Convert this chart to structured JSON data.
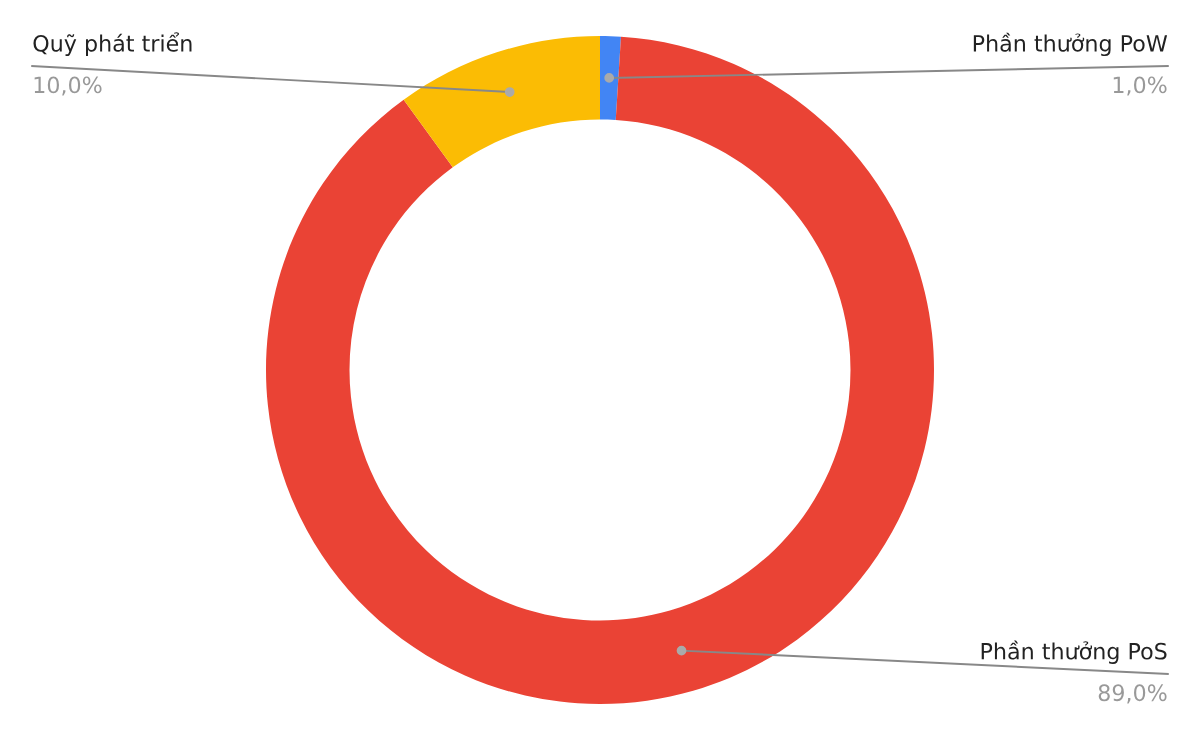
{
  "chart_data": {
    "type": "donut",
    "categories": [
      "Phần thưởng PoW",
      "Phần thưởng PoS",
      "Quỹ phát triển"
    ],
    "values": [
      1.0,
      89.0,
      10.0
    ],
    "colors": [
      "#4285f4",
      "#ea4335",
      "#fbbc04"
    ],
    "value_labels": [
      "1,0%",
      "89,0%",
      "10,0%"
    ],
    "legend": false
  }
}
